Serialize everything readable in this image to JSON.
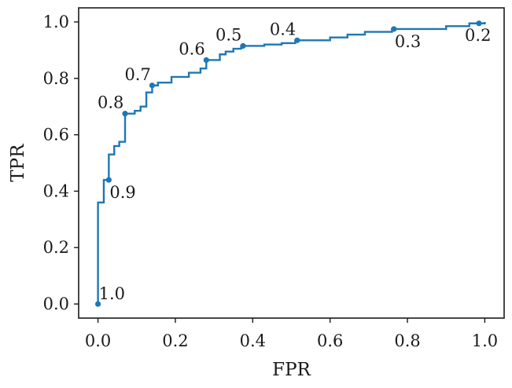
{
  "chart_data": {
    "type": "line",
    "title": "",
    "xlabel": "FPR",
    "ylabel": "TPR",
    "xlim": [
      -0.05,
      1.05
    ],
    "ylim": [
      -0.05,
      1.05
    ],
    "grid": false,
    "line_color": "#1f77b4",
    "xticks": [
      {
        "value": 0.0,
        "label": "0.0"
      },
      {
        "value": 0.2,
        "label": "0.2"
      },
      {
        "value": 0.4,
        "label": "0.4"
      },
      {
        "value": 0.6,
        "label": "0.6"
      },
      {
        "value": 0.8,
        "label": "0.8"
      },
      {
        "value": 1.0,
        "label": "1.0"
      }
    ],
    "yticks": [
      {
        "value": 0.0,
        "label": "0.0"
      },
      {
        "value": 0.2,
        "label": "0.2"
      },
      {
        "value": 0.4,
        "label": "0.4"
      },
      {
        "value": 0.6,
        "label": "0.6"
      },
      {
        "value": 0.8,
        "label": "0.8"
      },
      {
        "value": 1.0,
        "label": "1.0"
      }
    ],
    "roc_steps": [
      [
        0.0,
        0.0
      ],
      [
        0.0,
        0.36
      ],
      [
        0.015,
        0.36
      ],
      [
        0.015,
        0.44
      ],
      [
        0.028,
        0.44
      ],
      [
        0.028,
        0.53
      ],
      [
        0.042,
        0.53
      ],
      [
        0.042,
        0.56
      ],
      [
        0.055,
        0.56
      ],
      [
        0.055,
        0.575
      ],
      [
        0.07,
        0.575
      ],
      [
        0.07,
        0.675
      ],
      [
        0.095,
        0.675
      ],
      [
        0.095,
        0.685
      ],
      [
        0.11,
        0.685
      ],
      [
        0.11,
        0.7
      ],
      [
        0.125,
        0.7
      ],
      [
        0.125,
        0.75
      ],
      [
        0.14,
        0.75
      ],
      [
        0.14,
        0.775
      ],
      [
        0.155,
        0.775
      ],
      [
        0.155,
        0.785
      ],
      [
        0.19,
        0.785
      ],
      [
        0.19,
        0.805
      ],
      [
        0.235,
        0.805
      ],
      [
        0.235,
        0.82
      ],
      [
        0.265,
        0.82
      ],
      [
        0.265,
        0.835
      ],
      [
        0.28,
        0.835
      ],
      [
        0.28,
        0.865
      ],
      [
        0.315,
        0.865
      ],
      [
        0.315,
        0.885
      ],
      [
        0.33,
        0.885
      ],
      [
        0.33,
        0.895
      ],
      [
        0.35,
        0.895
      ],
      [
        0.35,
        0.905
      ],
      [
        0.37,
        0.905
      ],
      [
        0.37,
        0.915
      ],
      [
        0.43,
        0.915
      ],
      [
        0.43,
        0.92
      ],
      [
        0.475,
        0.92
      ],
      [
        0.475,
        0.925
      ],
      [
        0.51,
        0.925
      ],
      [
        0.51,
        0.935
      ],
      [
        0.6,
        0.935
      ],
      [
        0.6,
        0.945
      ],
      [
        0.645,
        0.945
      ],
      [
        0.645,
        0.955
      ],
      [
        0.69,
        0.955
      ],
      [
        0.69,
        0.965
      ],
      [
        0.76,
        0.965
      ],
      [
        0.76,
        0.975
      ],
      [
        0.9,
        0.975
      ],
      [
        0.9,
        0.985
      ],
      [
        0.96,
        0.985
      ],
      [
        0.96,
        0.995
      ],
      [
        1.0,
        0.995
      ],
      [
        1.0,
        1.0
      ]
    ],
    "threshold_points": [
      {
        "label": "1.0",
        "fpr": 0.0,
        "tpr": 0.0,
        "pos": "above-right"
      },
      {
        "label": "0.9",
        "fpr": 0.028,
        "tpr": 0.44,
        "pos": "below-right"
      },
      {
        "label": "0.8",
        "fpr": 0.07,
        "tpr": 0.675,
        "pos": "above-left"
      },
      {
        "label": "0.7",
        "fpr": 0.14,
        "tpr": 0.775,
        "pos": "above-left"
      },
      {
        "label": "0.6",
        "fpr": 0.28,
        "tpr": 0.865,
        "pos": "above-left"
      },
      {
        "label": "0.5",
        "fpr": 0.375,
        "tpr": 0.915,
        "pos": "above-left"
      },
      {
        "label": "0.4",
        "fpr": 0.515,
        "tpr": 0.935,
        "pos": "above-left"
      },
      {
        "label": "0.3",
        "fpr": 0.765,
        "tpr": 0.975,
        "pos": "below-right"
      },
      {
        "label": "0.2",
        "fpr": 0.985,
        "tpr": 0.995,
        "pos": "below"
      }
    ]
  }
}
